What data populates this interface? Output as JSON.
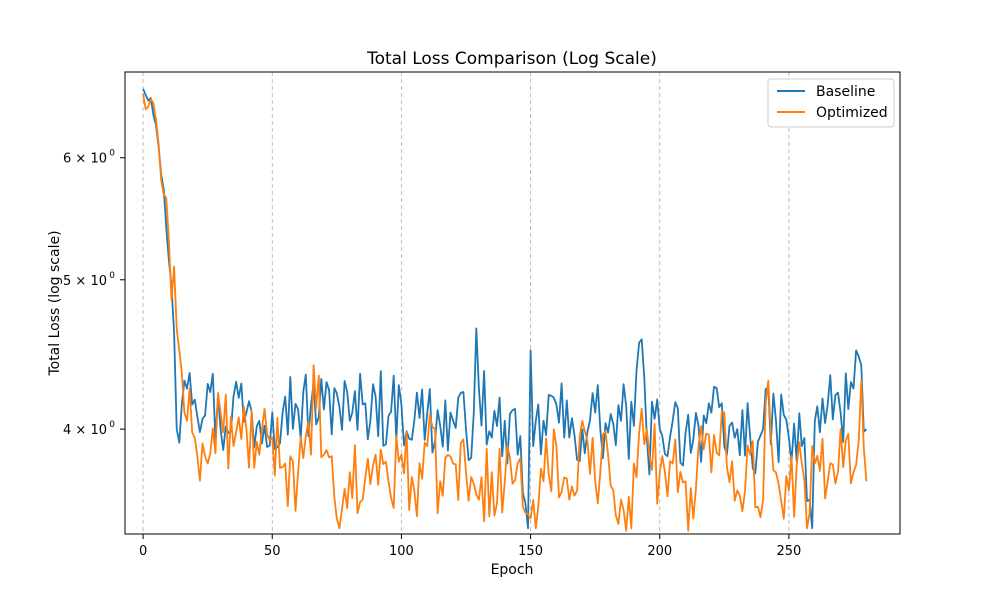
{
  "chart_data": {
    "type": "line",
    "title": "Total Loss Comparison (Log Scale)",
    "xlabel": "Epoch",
    "ylabel": "Total Loss (log scale)",
    "xscale": "linear",
    "yscale": "log",
    "xlim": [
      -7,
      293
    ],
    "ylim": [
      3.42,
      6.82
    ],
    "x_ticks": [
      0,
      50,
      100,
      150,
      200,
      250
    ],
    "x_tick_labels": [
      "0",
      "50",
      "100",
      "150",
      "200",
      "250"
    ],
    "y_ticks": [
      4,
      5,
      6
    ],
    "y_tick_labels": [
      "4 × 10",
      "5 × 10",
      "6 × 10"
    ],
    "y_tick_exponent": "0",
    "grid": "x-dashed",
    "legend_position": "top-right",
    "series": [
      {
        "name": "Baseline",
        "color": "#1f77b4",
        "key_points": [
          [
            0,
            6.65
          ],
          [
            3,
            6.56
          ],
          [
            5,
            6.3
          ],
          [
            6,
            6.1
          ],
          [
            7,
            5.85
          ],
          [
            8,
            5.72
          ],
          [
            9,
            5.4
          ],
          [
            10,
            5.15
          ],
          [
            11,
            4.95
          ],
          [
            12,
            4.62
          ],
          [
            13,
            4.0
          ],
          [
            14,
            3.92
          ],
          [
            15,
            4.15
          ],
          [
            16,
            4.3
          ],
          [
            17,
            4.25
          ],
          [
            18,
            4.35
          ],
          [
            19,
            4.15
          ],
          [
            20,
            4.18
          ],
          [
            25,
            4.28
          ],
          [
            30,
            4.0
          ],
          [
            35,
            4.2
          ],
          [
            40,
            4.1
          ],
          [
            45,
            4.05
          ],
          [
            50,
            4.1
          ],
          [
            55,
            4.2
          ],
          [
            60,
            4.12
          ],
          [
            65,
            4.15
          ],
          [
            70,
            4.12
          ],
          [
            75,
            4.22
          ],
          [
            80,
            4.05
          ],
          [
            85,
            4.15
          ],
          [
            90,
            4.2
          ],
          [
            95,
            4.08
          ],
          [
            100,
            4.15
          ],
          [
            105,
            4.05
          ],
          [
            110,
            4.1
          ],
          [
            115,
            4.02
          ],
          [
            120,
            4.05
          ],
          [
            125,
            4.0
          ],
          [
            128,
            4.1
          ],
          [
            129,
            4.65
          ],
          [
            130,
            4.25
          ],
          [
            135,
            3.95
          ],
          [
            140,
            4.05
          ],
          [
            145,
            3.85
          ],
          [
            148,
            3.58
          ],
          [
            149,
            3.45
          ],
          [
            150,
            4.5
          ],
          [
            151,
            3.9
          ],
          [
            155,
            4.05
          ],
          [
            160,
            4.15
          ],
          [
            165,
            3.95
          ],
          [
            170,
            4.0
          ],
          [
            175,
            4.1
          ],
          [
            180,
            3.98
          ],
          [
            185,
            4.05
          ],
          [
            190,
            4.02
          ],
          [
            192,
            4.55
          ],
          [
            195,
            3.95
          ],
          [
            200,
            4.0
          ],
          [
            205,
            4.05
          ],
          [
            210,
            3.98
          ],
          [
            215,
            4.02
          ],
          [
            220,
            4.1
          ],
          [
            225,
            3.9
          ],
          [
            230,
            4.0
          ],
          [
            235,
            3.95
          ],
          [
            240,
            4.0
          ],
          [
            245,
            4.05
          ],
          [
            250,
            3.95
          ],
          [
            255,
            3.9
          ],
          [
            258,
            3.6
          ],
          [
            259,
            3.45
          ],
          [
            260,
            4.05
          ],
          [
            265,
            4.15
          ],
          [
            270,
            4.1
          ],
          [
            275,
            4.25
          ],
          [
            278,
            4.4
          ],
          [
            280,
            4.0
          ]
        ]
      },
      {
        "name": "Optimized",
        "color": "#ff7f0e",
        "key_points": [
          [
            0,
            6.6
          ],
          [
            1,
            6.45
          ],
          [
            3,
            6.55
          ],
          [
            5,
            6.35
          ],
          [
            7,
            5.8
          ],
          [
            9,
            5.65
          ],
          [
            10,
            5.3
          ],
          [
            11,
            4.85
          ],
          [
            12,
            5.1
          ],
          [
            13,
            4.65
          ],
          [
            14,
            4.5
          ],
          [
            15,
            4.35
          ],
          [
            16,
            4.1
          ],
          [
            17,
            4.05
          ],
          [
            18,
            4.25
          ],
          [
            19,
            3.98
          ],
          [
            20,
            3.95
          ],
          [
            25,
            3.8
          ],
          [
            30,
            4.1
          ],
          [
            35,
            3.9
          ],
          [
            40,
            4.0
          ],
          [
            45,
            3.85
          ],
          [
            50,
            3.95
          ],
          [
            55,
            3.8
          ],
          [
            60,
            3.75
          ],
          [
            65,
            3.85
          ],
          [
            66,
            4.4
          ],
          [
            70,
            3.85
          ],
          [
            75,
            3.5
          ],
          [
            76,
            3.45
          ],
          [
            77,
            3.55
          ],
          [
            80,
            3.75
          ],
          [
            85,
            3.6
          ],
          [
            90,
            3.85
          ],
          [
            95,
            3.7
          ],
          [
            100,
            3.85
          ],
          [
            105,
            3.65
          ],
          [
            110,
            3.9
          ],
          [
            115,
            3.7
          ],
          [
            120,
            3.8
          ],
          [
            125,
            3.75
          ],
          [
            130,
            3.6
          ],
          [
            135,
            3.75
          ],
          [
            140,
            3.7
          ],
          [
            145,
            3.8
          ],
          [
            150,
            3.5
          ],
          [
            152,
            3.45
          ],
          [
            155,
            3.7
          ],
          [
            160,
            3.9
          ],
          [
            165,
            3.6
          ],
          [
            170,
            4.05
          ],
          [
            175,
            3.7
          ],
          [
            180,
            3.85
          ],
          [
            185,
            3.6
          ],
          [
            189,
            3.45
          ],
          [
            190,
            3.8
          ],
          [
            195,
            4.0
          ],
          [
            200,
            3.75
          ],
          [
            205,
            3.8
          ],
          [
            210,
            3.7
          ],
          [
            213,
            3.5
          ],
          [
            215,
            3.9
          ],
          [
            220,
            3.75
          ],
          [
            225,
            4.1
          ],
          [
            230,
            3.65
          ],
          [
            235,
            3.85
          ],
          [
            240,
            3.6
          ],
          [
            242,
            4.3
          ],
          [
            245,
            3.75
          ],
          [
            250,
            3.65
          ],
          [
            255,
            3.8
          ],
          [
            257,
            3.45
          ],
          [
            260,
            3.8
          ],
          [
            265,
            3.7
          ],
          [
            270,
            4.0
          ],
          [
            275,
            3.75
          ],
          [
            278,
            4.3
          ],
          [
            280,
            3.7
          ]
        ]
      }
    ]
  }
}
